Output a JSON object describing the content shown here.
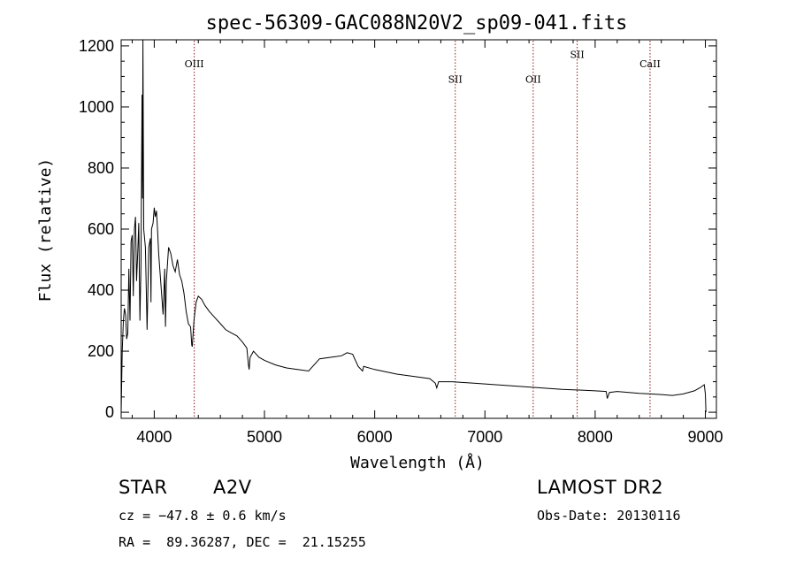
{
  "chart_data": {
    "type": "line",
    "title": "spec-56309-GAC088N20V2_sp09-041.fits",
    "xlabel": "Wavelength (Å)",
    "ylabel": "Flux (relative)",
    "xlim": [
      3700,
      9100
    ],
    "ylim": [
      -20,
      1220
    ],
    "xticks": [
      4000,
      5000,
      6000,
      7000,
      8000,
      9000
    ],
    "yticks": [
      0,
      200,
      400,
      600,
      800,
      1000,
      1200
    ],
    "grid": false,
    "line_color": "#000000",
    "marker_color": "#8b1a1a",
    "series": [
      {
        "x": [
          3700,
          3710,
          3720,
          3730,
          3740,
          3750,
          3760,
          3770,
          3780,
          3790,
          3800,
          3810,
          3820,
          3830,
          3840,
          3850,
          3860,
          3870,
          3880,
          3889,
          3893,
          3897,
          3905,
          3920,
          3935,
          3950,
          3965,
          3970,
          3975,
          3990,
          4000,
          4010,
          4020,
          4030,
          4040,
          4060,
          4080,
          4095,
          4102,
          4110,
          4130,
          4150,
          4170,
          4190,
          4210,
          4230,
          4250,
          4270,
          4290,
          4310,
          4330,
          4340,
          4345,
          4360,
          4380,
          4400,
          4430,
          4460,
          4500,
          4550,
          4600,
          4650,
          4700,
          4750,
          4800,
          4840,
          4855,
          4861,
          4870,
          4900,
          4950,
          5000,
          5100,
          5200,
          5300,
          5400,
          5500,
          5600,
          5700,
          5750,
          5800,
          5850,
          5890,
          5900,
          6000,
          6200,
          6400,
          6500,
          6550,
          6563,
          6580,
          6700,
          6900,
          7100,
          7300,
          7500,
          7700,
          7900,
          8000,
          8100,
          8110,
          8130,
          8200,
          8400,
          8500,
          8600,
          8700,
          8800,
          8900,
          8950,
          8990,
          9000,
          9005
        ],
        "y": [
          0,
          200,
          300,
          340,
          320,
          240,
          260,
          470,
          300,
          560,
          580,
          380,
          600,
          640,
          430,
          520,
          620,
          300,
          480,
          1040,
          700,
          1230,
          600,
          540,
          270,
          540,
          570,
          360,
          600,
          620,
          670,
          640,
          660,
          600,
          520,
          420,
          320,
          470,
          280,
          430,
          540,
          520,
          480,
          460,
          500,
          450,
          430,
          390,
          330,
          290,
          280,
          220,
          215,
          300,
          360,
          380,
          370,
          350,
          330,
          310,
          290,
          270,
          260,
          250,
          230,
          210,
          155,
          140,
          180,
          200,
          180,
          170,
          155,
          145,
          140,
          135,
          175,
          180,
          185,
          195,
          190,
          150,
          135,
          150,
          140,
          125,
          115,
          110,
          95,
          80,
          100,
          100,
          95,
          90,
          85,
          80,
          75,
          72,
          70,
          68,
          45,
          65,
          68,
          62,
          60,
          58,
          55,
          60,
          70,
          80,
          90,
          60,
          0
        ]
      }
    ],
    "annotations": [
      {
        "label": "OIII",
        "x": 4363,
        "label_y": 1130
      },
      {
        "label": "SII",
        "x": 6731,
        "label_y": 1080
      },
      {
        "label": "OII",
        "x": 7438,
        "label_y": 1080
      },
      {
        "label": "SII",
        "x": 7837,
        "label_y": 1160
      },
      {
        "label": "CaII",
        "x": 8498,
        "label_y": 1130
      }
    ]
  },
  "info": {
    "object_class": "STAR",
    "subclass": "A2V",
    "survey": "LAMOST DR2",
    "cz": "cz = −47.8 ± 0.6 km/s",
    "obs_date": "Obs-Date: 20130116",
    "coords": "RA =  89.36287, DEC =  21.15255"
  }
}
